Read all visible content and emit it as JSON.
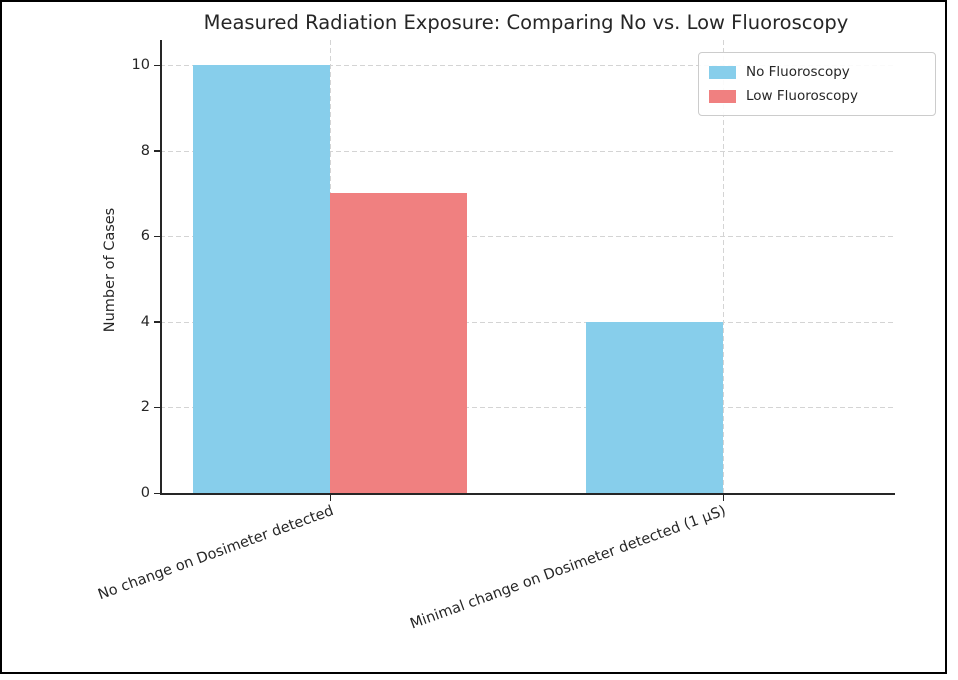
{
  "figure": {
    "border_color": "#000000",
    "background": "#ffffff"
  },
  "chart_data": {
    "type": "bar",
    "title": "Measured Radiation Exposure: Comparing No vs. Low Fluoroscopy",
    "xlabel": "",
    "ylabel": "Number of Cases",
    "categories": [
      "No change on Dosimeter detected",
      "Minimal change on Dosimeter detected (1 μS)"
    ],
    "series": [
      {
        "name": "No Fluoroscopy",
        "color": "#87CEEB",
        "values": [
          10,
          4
        ]
      },
      {
        "name": "Low Fluoroscopy",
        "color": "#F08080",
        "values": [
          7,
          0
        ]
      }
    ],
    "ylim": [
      0,
      10
    ],
    "yticks": [
      0,
      2,
      4,
      6,
      8,
      10
    ],
    "grid": "dashed, both axes",
    "legend_position": "upper right",
    "colors": {
      "grid": "#d4d4d4",
      "spine": "#262626",
      "text": "#262626"
    }
  }
}
